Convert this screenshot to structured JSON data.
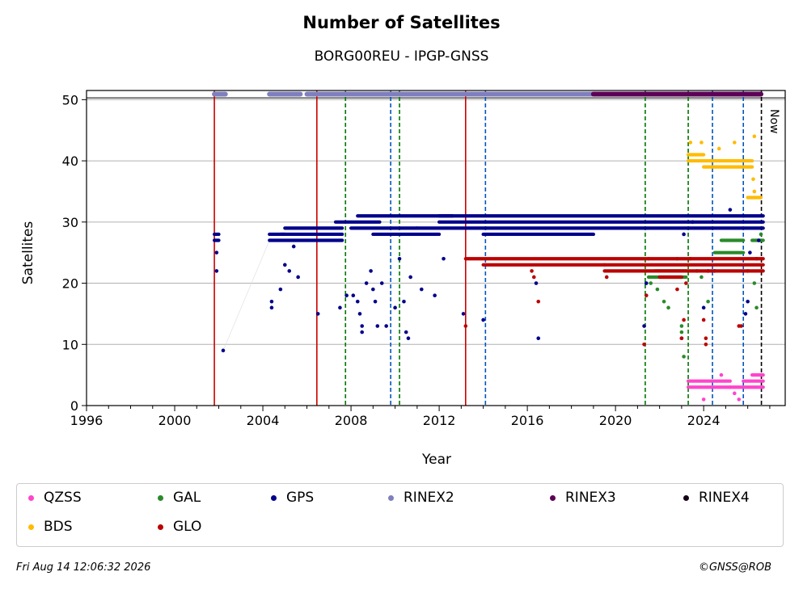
{
  "chart_data": {
    "type": "scatter",
    "title": "Number of Satellites",
    "subtitle": "BORG00REU - IPGP-GNSS",
    "xlabel": "Year",
    "ylabel": "Satellites",
    "xlim": [
      1996,
      2027.7
    ],
    "ylim": [
      0,
      51.5
    ],
    "xticks": [
      1996,
      2000,
      2004,
      2008,
      2012,
      2016,
      2020,
      2024
    ],
    "yticks": [
      0,
      10,
      20,
      30,
      40,
      50
    ],
    "grid": "horizontal",
    "legend_position": "bottom",
    "now_label": "Now",
    "now_x": 2026.62,
    "series": [
      {
        "name": "QZSS",
        "color": "#ff44cc",
        "segments": [
          [
            2023.3,
            2025.2,
            4
          ],
          [
            2023.3,
            2025.2,
            3
          ],
          [
            2025.2,
            2026.7,
            3
          ],
          [
            2025.8,
            2026.7,
            4
          ],
          [
            2026.2,
            2026.7,
            5
          ]
        ],
        "points": [
          [
            2024.0,
            1
          ],
          [
            2025.4,
            2
          ],
          [
            2025.6,
            1
          ],
          [
            2024.8,
            5
          ],
          [
            2026.6,
            5
          ]
        ]
      },
      {
        "name": "BDS",
        "color": "#ffbb00",
        "segments": [
          [
            2023.3,
            2026.2,
            40
          ],
          [
            2023.3,
            2024.0,
            41
          ],
          [
            2024.0,
            2026.2,
            39
          ],
          [
            2026.0,
            2026.6,
            34
          ]
        ],
        "points": [
          [
            2023.4,
            43
          ],
          [
            2023.9,
            43
          ],
          [
            2024.7,
            42
          ],
          [
            2025.4,
            43
          ],
          [
            2026.3,
            44
          ],
          [
            2026.25,
            37
          ],
          [
            2026.3,
            35
          ],
          [
            2025.8,
            29
          ]
        ]
      },
      {
        "name": "GAL",
        "color": "#2a8a2a",
        "segments": [
          [
            2021.5,
            2023.2,
            21
          ],
          [
            2021.8,
            2023.2,
            22
          ],
          [
            2024.5,
            2025.8,
            25
          ],
          [
            2024.8,
            2025.8,
            27
          ],
          [
            2026.2,
            2026.7,
            27
          ]
        ],
        "points": [
          [
            2021.6,
            20
          ],
          [
            2021.9,
            19
          ],
          [
            2022.2,
            17
          ],
          [
            2022.4,
            16
          ],
          [
            2022.8,
            24
          ],
          [
            2023.0,
            13
          ],
          [
            2023.0,
            12
          ],
          [
            2023.1,
            8
          ],
          [
            2023.7,
            22
          ],
          [
            2023.9,
            21
          ],
          [
            2024.2,
            17
          ],
          [
            2026.3,
            20
          ],
          [
            2026.4,
            16
          ],
          [
            2026.6,
            28
          ]
        ]
      },
      {
        "name": "GPS",
        "color": "#00008b",
        "segments": [
          [
            2001.8,
            2002.0,
            28
          ],
          [
            2001.8,
            2002.0,
            27
          ],
          [
            2004.3,
            2005.0,
            28
          ],
          [
            2004.3,
            2007.6,
            27
          ],
          [
            2004.8,
            2007.6,
            28
          ],
          [
            2005.0,
            2007.6,
            29
          ],
          [
            2007.3,
            2009.3,
            30
          ],
          [
            2008.3,
            2012.6,
            31
          ],
          [
            2008.0,
            2011.0,
            29
          ],
          [
            2009.0,
            2012.0,
            28
          ],
          [
            2011.0,
            2026.7,
            29
          ],
          [
            2012.0,
            2026.7,
            30
          ],
          [
            2012.0,
            2026.7,
            31
          ],
          [
            2014.0,
            2019.0,
            28
          ]
        ],
        "points": [
          [
            2001.9,
            22
          ],
          [
            2001.9,
            25
          ],
          [
            2002.2,
            9
          ],
          [
            2004.4,
            16
          ],
          [
            2004.4,
            17
          ],
          [
            2004.8,
            19
          ],
          [
            2005.0,
            23
          ],
          [
            2005.2,
            22
          ],
          [
            2005.4,
            26
          ],
          [
            2005.6,
            21
          ],
          [
            2006.5,
            15
          ],
          [
            2007.5,
            16
          ],
          [
            2007.8,
            18
          ],
          [
            2008.1,
            18
          ],
          [
            2008.3,
            17
          ],
          [
            2008.4,
            15
          ],
          [
            2008.5,
            12
          ],
          [
            2008.5,
            13
          ],
          [
            2008.7,
            20
          ],
          [
            2008.9,
            22
          ],
          [
            2009.0,
            19
          ],
          [
            2009.1,
            17
          ],
          [
            2009.2,
            13
          ],
          [
            2009.4,
            20
          ],
          [
            2009.6,
            13
          ],
          [
            2010.0,
            16
          ],
          [
            2010.2,
            24
          ],
          [
            2010.4,
            17
          ],
          [
            2010.5,
            12
          ],
          [
            2010.6,
            11
          ],
          [
            2010.7,
            21
          ],
          [
            2011.2,
            19
          ],
          [
            2011.8,
            18
          ],
          [
            2012.2,
            24
          ],
          [
            2013.1,
            15
          ],
          [
            2014.0,
            14
          ],
          [
            2016.5,
            11
          ],
          [
            2016.4,
            20
          ],
          [
            2021.3,
            13
          ],
          [
            2021.4,
            20
          ],
          [
            2023.0,
            11
          ],
          [
            2023.1,
            28
          ],
          [
            2023.5,
            30
          ],
          [
            2024.0,
            16
          ],
          [
            2024.2,
            22
          ],
          [
            2024.5,
            22
          ],
          [
            2025.2,
            32
          ],
          [
            2025.8,
            31
          ],
          [
            2025.9,
            15
          ],
          [
            2026.0,
            17
          ],
          [
            2026.1,
            25
          ],
          [
            2026.5,
            27
          ]
        ]
      },
      {
        "name": "GLO",
        "color": "#bb0000",
        "segments": [
          [
            2013.2,
            2021.5,
            24
          ],
          [
            2014.0,
            2019.5,
            23
          ],
          [
            2019.5,
            2026.7,
            23
          ],
          [
            2019.5,
            2026.7,
            22
          ],
          [
            2021.5,
            2026.7,
            24
          ],
          [
            2022.0,
            2023.0,
            21
          ]
        ],
        "points": [
          [
            2013.2,
            13
          ],
          [
            2016.2,
            22
          ],
          [
            2016.3,
            21
          ],
          [
            2016.5,
            17
          ],
          [
            2019.6,
            21
          ],
          [
            2021.3,
            10
          ],
          [
            2021.4,
            18
          ],
          [
            2022.8,
            19
          ],
          [
            2023.0,
            11
          ],
          [
            2023.1,
            14
          ],
          [
            2023.2,
            20
          ],
          [
            2023.4,
            24
          ],
          [
            2024.0,
            14
          ],
          [
            2024.1,
            11
          ],
          [
            2024.1,
            10
          ],
          [
            2025.6,
            13
          ],
          [
            2025.7,
            13
          ],
          [
            2026.0,
            22
          ],
          [
            2026.4,
            24
          ]
        ]
      },
      {
        "name": "RINEX2",
        "color": "#7f7fbf",
        "segments": [
          [
            2001.8,
            2002.3,
            50.9
          ],
          [
            2004.3,
            2005.7,
            50.9
          ],
          [
            2006.0,
            2019.0,
            50.9
          ]
        ],
        "points": []
      },
      {
        "name": "RINEX3",
        "color": "#5c0057",
        "segments": [
          [
            2019.0,
            2026.6,
            50.9
          ]
        ],
        "points": []
      },
      {
        "name": "RINEX4",
        "color": "#150015",
        "segments": [],
        "points": []
      }
    ],
    "events": [
      {
        "x": 2001.8,
        "kind": "receiver_antenna",
        "color": "#cc0000",
        "style": "solid"
      },
      {
        "x": 2006.45,
        "kind": "receiver",
        "color": "#cc0000",
        "style": "solid"
      },
      {
        "x": 2007.75,
        "kind": "firmware",
        "color": "#007700",
        "style": "dashed"
      },
      {
        "x": 2009.8,
        "kind": "other",
        "color": "#0055bb",
        "style": "dashed"
      },
      {
        "x": 2010.2,
        "kind": "firmware",
        "color": "#007700",
        "style": "dashed"
      },
      {
        "x": 2013.2,
        "kind": "receiver_antenna",
        "color": "#cc0000",
        "style": "solid"
      },
      {
        "x": 2014.1,
        "kind": "other",
        "color": "#0055bb",
        "style": "dashed"
      },
      {
        "x": 2021.35,
        "kind": "firmware",
        "color": "#007700",
        "style": "dashed"
      },
      {
        "x": 2023.3,
        "kind": "firmware",
        "color": "#007700",
        "style": "dashed"
      },
      {
        "x": 2024.4,
        "kind": "other",
        "color": "#0055bb",
        "style": "dashed"
      },
      {
        "x": 2025.8,
        "kind": "other",
        "color": "#0055bb",
        "style": "dashed"
      }
    ]
  },
  "legend": [
    {
      "label": "QZSS",
      "color": "#ff44cc"
    },
    {
      "label": "GAL",
      "color": "#2a8a2a"
    },
    {
      "label": "GPS",
      "color": "#00008b"
    },
    {
      "label": "RINEX2",
      "color": "#7f7fbf"
    },
    {
      "label": "RINEX3",
      "color": "#5c0057"
    },
    {
      "label": "RINEX4",
      "color": "#150015"
    },
    {
      "label": "BDS",
      "color": "#ffbb00"
    },
    {
      "label": "GLO",
      "color": "#bb0000"
    }
  ],
  "footer": {
    "timestamp": "Fri Aug 14 12:06:32 2026",
    "credit": "©GNSS@ROB"
  }
}
